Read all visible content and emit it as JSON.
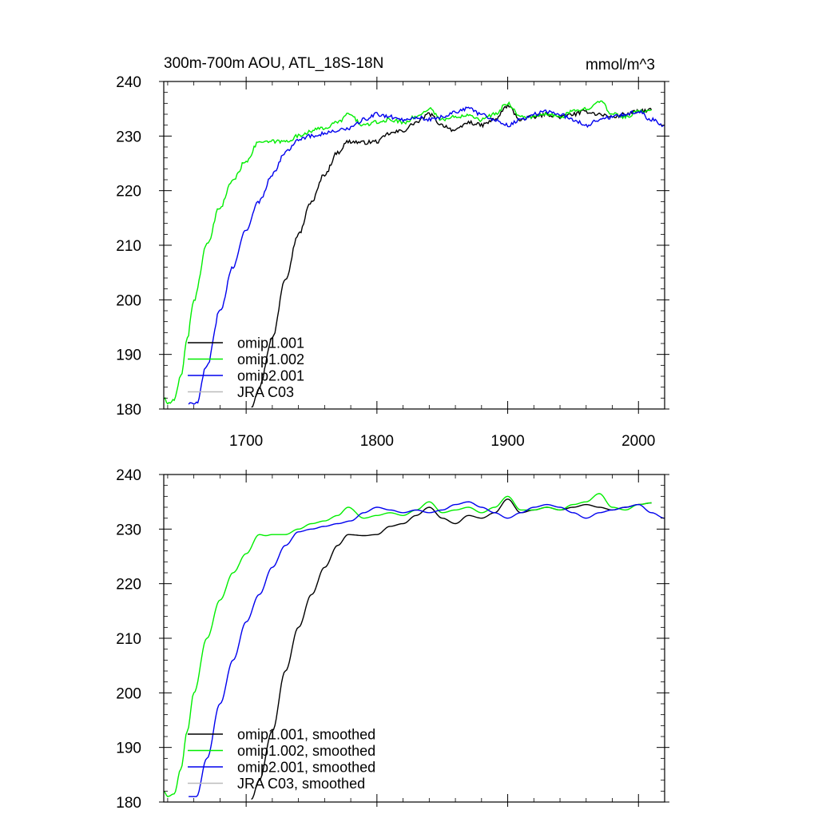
{
  "chart_data": [
    {
      "type": "line",
      "title": "300m-700m AOU, ATL_18S-18N",
      "units": "mmol/m^3",
      "xlabel": "",
      "ylabel": "",
      "xlim": [
        1637,
        2020
      ],
      "ylim": [
        180,
        240
      ],
      "xticks": [
        1700,
        1800,
        1900,
        2000
      ],
      "yticks": [
        180,
        190,
        200,
        210,
        220,
        230,
        240
      ],
      "show_x_tick_labels": true,
      "legend_position": "bottom-left",
      "series": [
        {
          "name": "omip1.001",
          "color": "#000000",
          "noisy": true,
          "x": [
            1704,
            1710,
            1720,
            1730,
            1740,
            1750,
            1760,
            1770,
            1778,
            1790,
            1800,
            1810,
            1820,
            1830,
            1840,
            1850,
            1860,
            1870,
            1880,
            1890,
            1900,
            1910,
            1920,
            1930,
            1940,
            1950,
            1960,
            1970,
            1980,
            1990,
            2000,
            2010
          ],
          "y": [
            180.5,
            184,
            193,
            204,
            212,
            218,
            223,
            227,
            229,
            228.8,
            229,
            230.5,
            231,
            232.5,
            234,
            232,
            231,
            232.5,
            232,
            233,
            235.5,
            233,
            233.5,
            234,
            233.5,
            234,
            234.5,
            234,
            233.5,
            234,
            234.5,
            234.8
          ]
        },
        {
          "name": "omip1.002",
          "color": "#00ee00",
          "noisy": true,
          "x": [
            1637,
            1640,
            1645,
            1650,
            1655,
            1660,
            1670,
            1680,
            1690,
            1700,
            1710,
            1715,
            1720,
            1730,
            1740,
            1750,
            1760,
            1770,
            1778,
            1790,
            1800,
            1810,
            1820,
            1830,
            1840,
            1850,
            1860,
            1870,
            1880,
            1890,
            1900,
            1910,
            1920,
            1930,
            1940,
            1950,
            1960,
            1970,
            1980,
            1990,
            2000,
            2010
          ],
          "y": [
            182,
            181,
            181.5,
            186,
            193,
            200,
            210,
            217,
            222,
            225.5,
            229,
            228.8,
            229,
            229,
            230,
            231,
            231.5,
            232.5,
            234,
            232,
            232.5,
            233,
            232.5,
            233.5,
            235,
            233,
            233.5,
            234,
            233,
            234,
            236,
            233.5,
            233.5,
            234,
            233.5,
            234.5,
            235,
            236.5,
            234,
            233.5,
            234.5,
            234.8
          ]
        },
        {
          "name": "omip2.001",
          "color": "#0000ee",
          "noisy": true,
          "x": [
            1656,
            1662,
            1670,
            1680,
            1690,
            1700,
            1710,
            1720,
            1730,
            1740,
            1750,
            1760,
            1770,
            1780,
            1790,
            1800,
            1810,
            1820,
            1830,
            1840,
            1850,
            1860,
            1870,
            1880,
            1890,
            1900,
            1910,
            1920,
            1930,
            1940,
            1950,
            1960,
            1970,
            1980,
            1990,
            2000,
            2010,
            2020
          ],
          "y": [
            181,
            181,
            188,
            198,
            206,
            213,
            218,
            223,
            227,
            229.5,
            230,
            230.5,
            231,
            231.5,
            233,
            234,
            233.5,
            233,
            233.5,
            233,
            233.5,
            234.5,
            235,
            234,
            233,
            232,
            233,
            234,
            234.5,
            234,
            233,
            232,
            233,
            233.5,
            234,
            234.5,
            233,
            232
          ]
        },
        {
          "name": "JRA C03",
          "color": "#bbbbbb",
          "x": [],
          "y": []
        }
      ]
    },
    {
      "type": "line",
      "title": "",
      "xlabel": "",
      "ylabel": "",
      "xlim": [
        1637,
        2020
      ],
      "ylim": [
        180,
        240
      ],
      "xticks": [
        1700,
        1800,
        1900,
        2000
      ],
      "yticks": [
        180,
        190,
        200,
        210,
        220,
        230,
        240
      ],
      "show_x_tick_labels": false,
      "legend_position": "bottom-left",
      "series": [
        {
          "name": "omip1.001, smoothed",
          "color": "#000000",
          "noisy": false,
          "x": [
            1704,
            1710,
            1720,
            1730,
            1740,
            1750,
            1760,
            1770,
            1778,
            1790,
            1800,
            1810,
            1820,
            1830,
            1840,
            1850,
            1860,
            1870,
            1880,
            1890,
            1900,
            1910,
            1920,
            1930,
            1940,
            1950,
            1960,
            1970,
            1980,
            1990,
            2000,
            2010
          ],
          "y": [
            180.5,
            184,
            193,
            204,
            212,
            218,
            223,
            227,
            229,
            228.8,
            229,
            230.5,
            231,
            232.5,
            234,
            232,
            231,
            232.5,
            232,
            233,
            235.5,
            233,
            233.5,
            234,
            233.5,
            234,
            234.5,
            234,
            233.5,
            234,
            234.5,
            234.8
          ]
        },
        {
          "name": "omip1.002, smoothed",
          "color": "#00ee00",
          "noisy": false,
          "x": [
            1637,
            1640,
            1645,
            1650,
            1655,
            1660,
            1670,
            1680,
            1690,
            1700,
            1710,
            1715,
            1720,
            1730,
            1740,
            1750,
            1760,
            1770,
            1778,
            1790,
            1800,
            1810,
            1820,
            1830,
            1840,
            1850,
            1860,
            1870,
            1880,
            1890,
            1900,
            1910,
            1920,
            1930,
            1940,
            1950,
            1960,
            1970,
            1980,
            1990,
            2000,
            2010
          ],
          "y": [
            182,
            181,
            181.5,
            186,
            193,
            200,
            210,
            217,
            222,
            225.5,
            229,
            228.8,
            229,
            229,
            230,
            231,
            231.5,
            232.5,
            234,
            232,
            232.5,
            233,
            232.5,
            233.5,
            235,
            233,
            233.5,
            234,
            233,
            234,
            236,
            233.5,
            233.5,
            234,
            233.5,
            234.5,
            235,
            236.5,
            234,
            233.5,
            234.5,
            234.8
          ]
        },
        {
          "name": "omip2.001, smoothed",
          "color": "#0000ee",
          "noisy": false,
          "x": [
            1656,
            1662,
            1670,
            1680,
            1690,
            1700,
            1710,
            1720,
            1730,
            1740,
            1750,
            1760,
            1770,
            1780,
            1790,
            1800,
            1810,
            1820,
            1830,
            1840,
            1850,
            1860,
            1870,
            1880,
            1890,
            1900,
            1910,
            1920,
            1930,
            1940,
            1950,
            1960,
            1970,
            1980,
            1990,
            2000,
            2010,
            2020
          ],
          "y": [
            181,
            181,
            188,
            198,
            206,
            213,
            218,
            223,
            227,
            229.5,
            230,
            230.5,
            231,
            231.5,
            233,
            234,
            233.5,
            233,
            233.5,
            233,
            233.5,
            234.5,
            235,
            234,
            233,
            232,
            233,
            234,
            234.5,
            234,
            233,
            232,
            233,
            233.5,
            234,
            234.5,
            233,
            232
          ]
        },
        {
          "name": "JRA C03, smoothed",
          "color": "#bbbbbb",
          "x": [],
          "y": []
        }
      ]
    }
  ]
}
